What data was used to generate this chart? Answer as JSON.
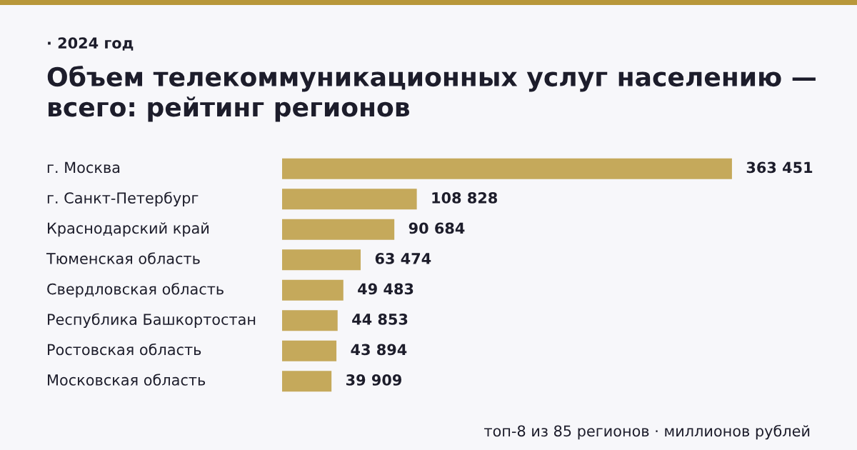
{
  "chart_data": {
    "type": "bar",
    "orientation": "horizontal",
    "subtitle": "· 2024 год",
    "title": "Объем телекоммуникационных услуг населению — всего: рейтинг регионов",
    "categories": [
      "г. Москва",
      "г. Санкт-Петербург",
      "Краснодарский край",
      "Тюменская область",
      "Свердловская область",
      "Республика Башкортостан",
      "Ростовская область",
      "Московская область"
    ],
    "values": [
      363451,
      108828,
      90684,
      63474,
      49483,
      44853,
      43894,
      39909
    ],
    "value_labels": [
      "363 451",
      "108 828",
      "90 684",
      "63 474",
      "49 483",
      "44 853",
      "43 894",
      "39 909"
    ],
    "color": "#c5a95b",
    "legend": false,
    "annotations": [
      "топ-8 из 85 регионов · миллионов рублей"
    ]
  }
}
